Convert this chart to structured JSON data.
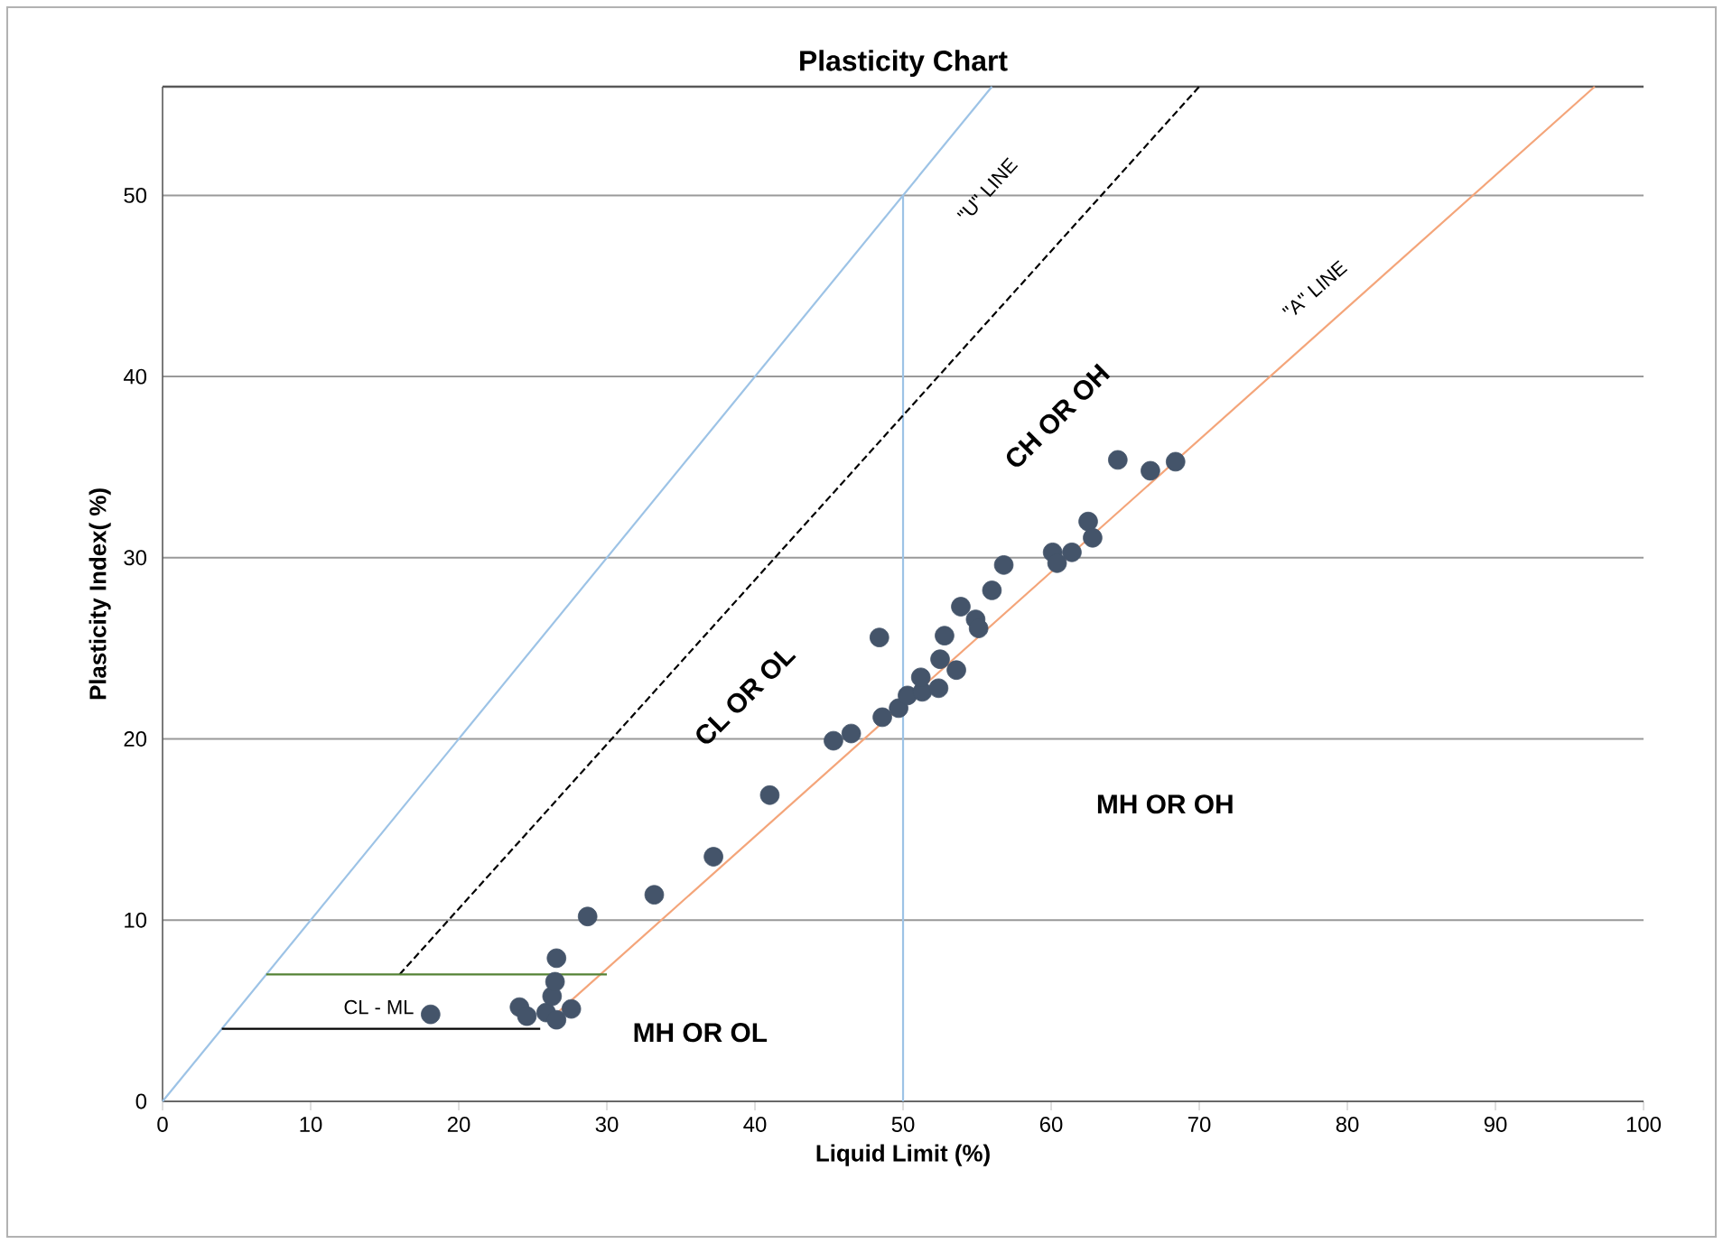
{
  "chart_data": {
    "type": "scatter",
    "title": "Plasticity Chart",
    "xlabel": "Liquid Limit (%)",
    "ylabel": "Plasticity Index( %)",
    "xlim": [
      0,
      100
    ],
    "ylim": [
      0,
      56
    ],
    "xticks": [
      0,
      10,
      20,
      30,
      40,
      50,
      60,
      70,
      80,
      90,
      100
    ],
    "yticks": [
      0,
      10,
      20,
      30,
      40,
      50
    ],
    "grid": "y",
    "series": [
      {
        "type": "line",
        "color": "#9dc3e6",
        "line_style": "solid",
        "marker": "none",
        "x": [
          0,
          56
        ],
        "values": [
          0,
          56
        ]
      },
      {
        "type": "line",
        "color": "#9dc3e6",
        "line_style": "solid",
        "marker": "none",
        "x": [
          50,
          50
        ],
        "values": [
          0,
          50
        ]
      },
      {
        "type": "line",
        "color": "#000000",
        "line_style": "dashed",
        "marker": "none",
        "x": [
          16,
          70
        ],
        "values": [
          7,
          56
        ]
      },
      {
        "type": "line",
        "color": "#f4a57a",
        "line_style": "solid",
        "marker": "none",
        "x": [
          26,
          96.7
        ],
        "values": [
          4.4,
          56
        ]
      },
      {
        "type": "line",
        "color": "#548235",
        "line_style": "solid",
        "marker": "none",
        "x": [
          7,
          30
        ],
        "values": [
          7,
          7
        ]
      },
      {
        "type": "line",
        "color": "#000000",
        "line_style": "solid",
        "marker": "none",
        "x": [
          4,
          25.5
        ],
        "values": [
          4,
          4
        ]
      },
      {
        "color": "#44546a",
        "marker": "circle",
        "x": [
          18.1,
          24.1,
          24.6,
          25.9,
          26.6,
          27.6,
          26.3,
          26.5,
          26.6,
          28.7,
          33.2,
          37.2,
          41.0,
          45.3,
          46.5,
          48.4,
          48.6,
          49.7,
          50.3,
          51.3,
          51.2,
          52.4,
          52.5,
          53.6,
          52.8,
          53.9,
          54.9,
          55.1,
          56.0,
          56.8,
          60.1,
          60.4,
          61.4,
          62.5,
          62.8,
          64.5,
          66.7,
          68.4
        ],
        "values": [
          4.8,
          5.2,
          4.7,
          4.9,
          4.5,
          5.1,
          5.8,
          6.6,
          7.9,
          10.2,
          11.4,
          13.5,
          16.9,
          19.9,
          20.3,
          25.6,
          21.2,
          21.7,
          22.4,
          22.6,
          23.4,
          22.8,
          24.4,
          23.8,
          25.7,
          27.3,
          26.6,
          26.1,
          28.2,
          29.6,
          30.3,
          29.7,
          30.3,
          32.0,
          31.1,
          35.4,
          34.8,
          35.3
        ]
      }
    ],
    "annotations": [
      "\"U\"  LINE",
      "\"A\"  LINE",
      "CH OR OH",
      "CL OR OL",
      "MH OR OH",
      "MH OR OL",
      "CL - ML"
    ]
  }
}
